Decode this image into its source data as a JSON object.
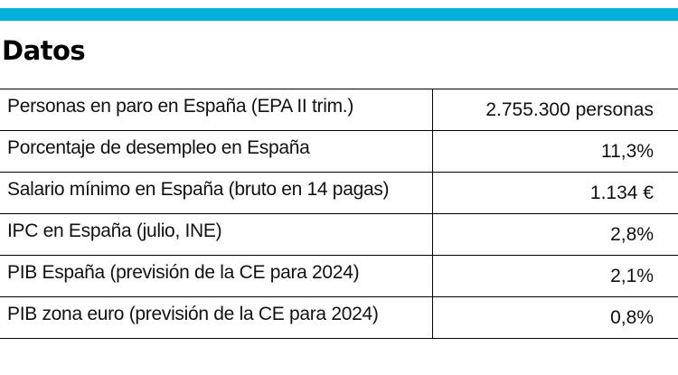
{
  "header": {
    "accent_color": "#00b0d8",
    "title": "Datos"
  },
  "table": {
    "rows": [
      {
        "label": "Personas en paro en España (EPA  II trim.)",
        "value": "2.755.300 personas"
      },
      {
        "label": "Porcentaje de desempleo en España",
        "value": "11,3%"
      },
      {
        "label": "Salario mínimo en España (bruto en 14 pagas)",
        "value": "1.134 €"
      },
      {
        "label": "IPC en España (julio, INE)",
        "value": "2,8%"
      },
      {
        "label": "PIB España (previsión de la CE para 2024)",
        "value": "2,1%"
      },
      {
        "label": "PIB zona euro (previsión de la CE para 2024)",
        "value": "0,8%"
      }
    ]
  }
}
